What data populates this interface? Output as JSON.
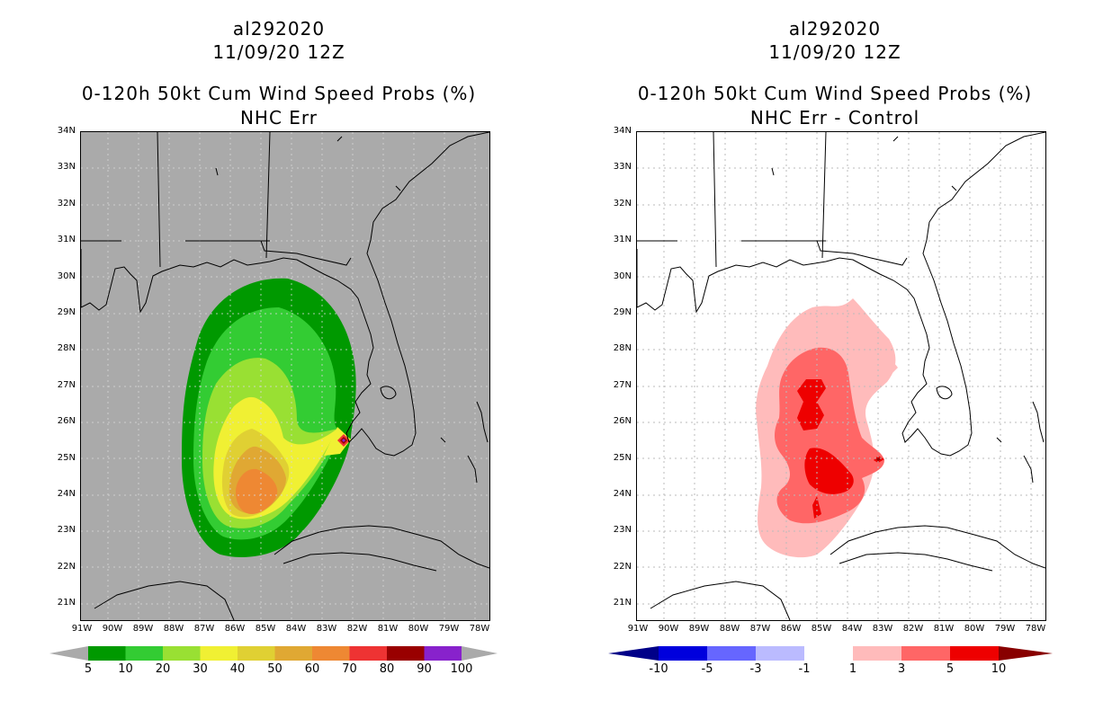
{
  "left_panel": {
    "storm_id": "al292020",
    "datetime": "11/09/20 12Z",
    "product": "0-120h 50kt Cum Wind Speed Probs (%)",
    "subtitle": "NHC Err",
    "background_color": "#aaaaaa",
    "colorbar_labels": [
      "5",
      "10",
      "20",
      "30",
      "40",
      "50",
      "60",
      "70",
      "80",
      "90",
      "100"
    ],
    "colorbar_colors": [
      "#009900",
      "#33cc33",
      "#99e033",
      "#f0f033",
      "#e0d033",
      "#e0a833",
      "#ee8833",
      "#ee3333",
      "#990000",
      "#8822cc"
    ]
  },
  "right_panel": {
    "storm_id": "al292020",
    "datetime": "11/09/20 12Z",
    "product": "0-120h 50kt Cum Wind Speed Probs (%)",
    "subtitle": "NHC Err - Control",
    "background_color": "#ffffff",
    "colorbar_labels": [
      "-10",
      "-5",
      "-3",
      "-1",
      "1",
      "3",
      "5",
      "10"
    ],
    "colorbar_colors": [
      "#0000dd",
      "#6666ff",
      "#bbbbff",
      "#ffffff",
      "#ffbbbb",
      "#ff6666",
      "#ee0000"
    ]
  },
  "lat_labels": [
    "34N",
    "33N",
    "32N",
    "31N",
    "30N",
    "29N",
    "28N",
    "27N",
    "26N",
    "25N",
    "24N",
    "23N",
    "22N",
    "21N"
  ],
  "lon_labels": [
    "91W",
    "90W",
    "89W",
    "88W",
    "87W",
    "86W",
    "85W",
    "84W",
    "83W",
    "82W",
    "81W",
    "80W",
    "79W",
    "78W"
  ]
}
